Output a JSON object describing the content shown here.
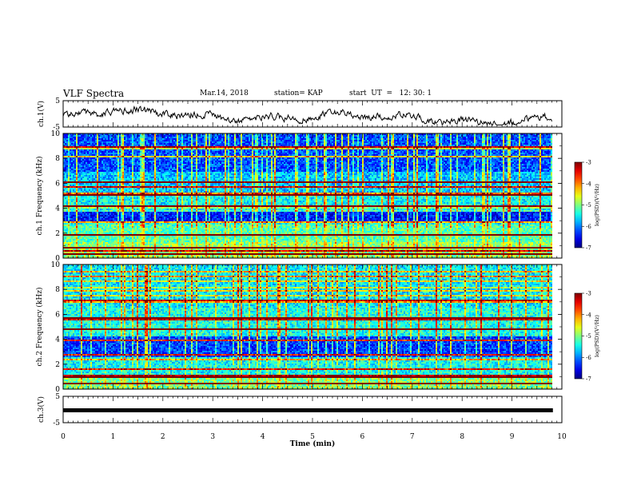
{
  "header": {
    "title": "VLF Spectra",
    "date": "Mar.14, 2018",
    "station": "station= KAP",
    "start_ut": "start  UT  =   12: 30: 1"
  },
  "chart_data": [
    {
      "type": "line",
      "panel": "ch1-waveform",
      "ylabel": "ch.1(V)",
      "yticks": [
        "5",
        "-5"
      ],
      "ylim": [
        -5,
        5
      ],
      "xlim": [
        0,
        10
      ],
      "x_extent_min": 9.8,
      "color": "#000000",
      "note_level": "trace fluctuates between about -3 and 2.5 V"
    },
    {
      "type": "heatmap",
      "panel": "ch1-spectrogram",
      "ylabel": "ch.1 Frequency (kHz)",
      "yticks": [
        "0",
        "2",
        "4",
        "6",
        "8",
        "10"
      ],
      "ylim": [
        0,
        10
      ],
      "xlim": [
        0,
        10
      ],
      "x_extent_min": 9.8,
      "colorbar": {
        "label": "log(PSD)(V²/Hz)",
        "ticks": [
          "-3",
          "-4",
          "-5",
          "-6",
          "-7"
        ],
        "range": [
          -7,
          -3
        ]
      }
    },
    {
      "type": "heatmap",
      "panel": "ch2-spectrogram",
      "ylabel": "ch.2 Frequency (kHz)",
      "yticks": [
        "0",
        "2",
        "4",
        "6",
        "8",
        "10"
      ],
      "ylim": [
        0,
        10
      ],
      "xlim": [
        0,
        10
      ],
      "x_extent_min": 9.8,
      "colorbar": {
        "label": "log(PSD)(V²/Hz)",
        "ticks": [
          "-3",
          "-4",
          "-5",
          "-6",
          "-7"
        ],
        "range": [
          -7,
          -3
        ]
      }
    },
    {
      "type": "line",
      "panel": "ch3-waveform",
      "ylabel": "ch.3(V)",
      "yticks": [
        "5",
        "-5"
      ],
      "ylim": [
        -5,
        5
      ],
      "xlim": [
        0,
        10
      ],
      "constant_value": 0,
      "color": "#000000"
    }
  ],
  "xaxis": {
    "label": "Time  (min)",
    "ticks": [
      "0",
      "1",
      "2",
      "3",
      "4",
      "5",
      "6",
      "7",
      "8",
      "9",
      "10"
    ]
  }
}
